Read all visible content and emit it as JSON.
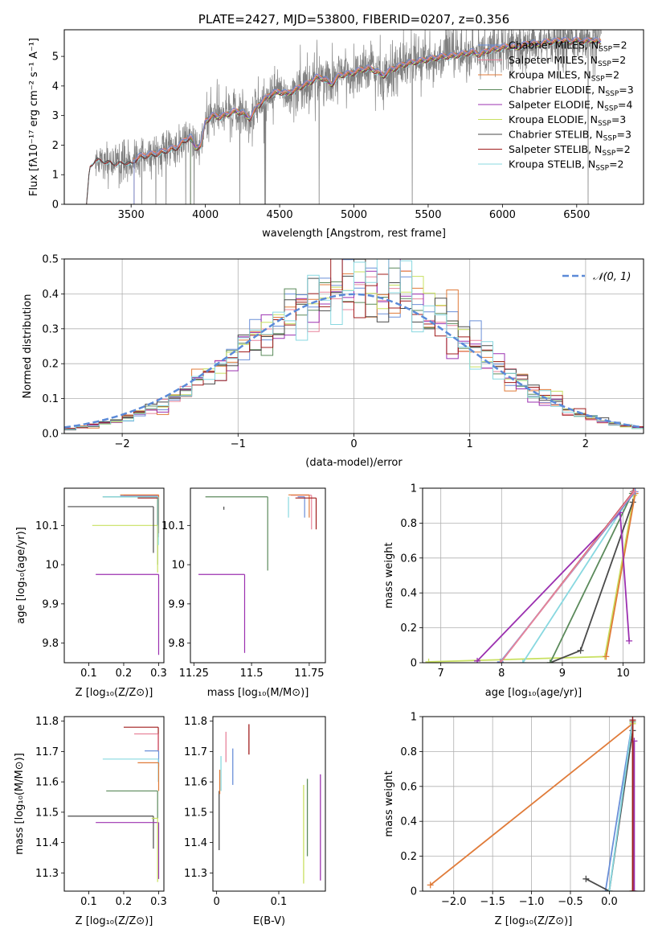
{
  "colors": {
    "chabrier_miles": "#6a8fd8",
    "salpeter_miles": "#e8849b",
    "kroupa_miles": "#e07b39",
    "chabrier_elodie": "#5b8a5b",
    "salpeter_elodie": "#9b30b0",
    "kroupa_elodie": "#c8e060",
    "chabrier_stelib": "#4a4a4a",
    "salpeter_stelib": "#a01c1c",
    "kroupa_stelib": "#88d8e0",
    "data": "#808080",
    "gaussian": "#5b8ad8"
  },
  "chart_data": [
    {
      "id": "spectrum",
      "type": "line",
      "title": "PLATE=2427, MJD=53800, FIBERID=0207, z=0.356",
      "xlabel": "wavelength [Angstrom, rest frame]",
      "ylabel": "Flux [fλ10⁻¹⁷ erg cm⁻² s⁻¹ A⁻¹]",
      "xlim": [
        3050,
        6950
      ],
      "ylim": [
        0,
        5.9
      ],
      "xticks": [
        3500,
        4000,
        4500,
        5000,
        5500,
        6000,
        6500
      ],
      "yticks": [
        0,
        1,
        2,
        3,
        4,
        5
      ],
      "legend_position": "upper right",
      "legend": [
        {
          "label": "Chabrier MILES, N",
          "sub": "SSP",
          "suffix": "=2",
          "color": "chabrier_miles"
        },
        {
          "label": "Salpeter MILES, N",
          "sub": "SSP",
          "suffix": "=2",
          "color": "salpeter_miles"
        },
        {
          "label": "Kroupa MILES, N",
          "sub": "SSP",
          "suffix": "=2",
          "color": "kroupa_miles"
        },
        {
          "label": "Chabrier ELODIE, N",
          "sub": "SSP",
          "suffix": "=3",
          "color": "chabrier_elodie"
        },
        {
          "label": "Salpeter ELODIE, N",
          "sub": "SSP",
          "suffix": "=4",
          "color": "salpeter_elodie"
        },
        {
          "label": "Kroupa ELODIE, N",
          "sub": "SSP",
          "suffix": "=3",
          "color": "kroupa_elodie"
        },
        {
          "label": "Chabrier STELIB, N",
          "sub": "SSP",
          "suffix": "=3",
          "color": "chabrier_stelib"
        },
        {
          "label": "Salpeter STELIB, N",
          "sub": "SSP",
          "suffix": "=2",
          "color": "salpeter_stelib"
        },
        {
          "label": "Kroupa STELIB, N",
          "sub": "SSP",
          "suffix": "=2",
          "color": "kroupa_stelib"
        }
      ],
      "continuum": [
        [
          3200,
          0
        ],
        [
          3220,
          1.25
        ],
        [
          3260,
          1.55
        ],
        [
          3300,
          1.5
        ],
        [
          3350,
          1.45
        ],
        [
          3400,
          1.4
        ],
        [
          3450,
          1.45
        ],
        [
          3500,
          1.4
        ],
        [
          3550,
          1.6
        ],
        [
          3600,
          1.65
        ],
        [
          3650,
          1.7
        ],
        [
          3700,
          1.75
        ],
        [
          3750,
          1.85
        ],
        [
          3800,
          1.9
        ],
        [
          3850,
          2.1
        ],
        [
          3900,
          2.3
        ],
        [
          3935,
          1.9
        ],
        [
          3970,
          2.0
        ],
        [
          4000,
          2.8
        ],
        [
          4050,
          3.0
        ],
        [
          4100,
          2.95
        ],
        [
          4150,
          3.05
        ],
        [
          4200,
          3.15
        ],
        [
          4250,
          3.1
        ],
        [
          4300,
          2.9
        ],
        [
          4350,
          3.3
        ],
        [
          4400,
          3.55
        ],
        [
          4450,
          3.75
        ],
        [
          4500,
          3.8
        ],
        [
          4550,
          3.75
        ],
        [
          4600,
          3.85
        ],
        [
          4650,
          4.0
        ],
        [
          4700,
          4.1
        ],
        [
          4750,
          4.3
        ],
        [
          4800,
          4.25
        ],
        [
          4850,
          4.05
        ],
        [
          4900,
          4.35
        ],
        [
          4950,
          4.4
        ],
        [
          5000,
          4.45
        ],
        [
          5050,
          4.55
        ],
        [
          5100,
          4.6
        ],
        [
          5150,
          4.5
        ],
        [
          5200,
          4.35
        ],
        [
          5250,
          4.55
        ],
        [
          5300,
          4.65
        ],
        [
          5350,
          4.75
        ],
        [
          5400,
          4.8
        ],
        [
          5450,
          4.85
        ],
        [
          5500,
          4.9
        ],
        [
          5550,
          4.95
        ],
        [
          5600,
          5.0
        ],
        [
          5650,
          5.0
        ],
        [
          5700,
          5.05
        ],
        [
          5750,
          5.1
        ],
        [
          5800,
          5.15
        ],
        [
          5850,
          5.05
        ],
        [
          5900,
          5.2
        ],
        [
          5950,
          5.25
        ],
        [
          6000,
          5.3
        ],
        [
          6050,
          5.35
        ],
        [
          6100,
          5.3
        ],
        [
          6150,
          5.4
        ],
        [
          6200,
          5.45
        ],
        [
          6250,
          5.4
        ],
        [
          6300,
          5.5
        ],
        [
          6350,
          5.5
        ],
        [
          6400,
          5.55
        ],
        [
          6450,
          5.5
        ],
        [
          6500,
          5.55
        ],
        [
          6550,
          5.5
        ],
        [
          6600,
          5.55
        ],
        [
          6650,
          5.5
        ]
      ],
      "data_range": [
        3260,
        6665
      ]
    },
    {
      "id": "residuals",
      "type": "bar",
      "xlabel": "(data-model)/error",
      "ylabel": "Normed distribution",
      "xlim": [
        -2.5,
        2.5
      ],
      "ylim": [
        0,
        0.5
      ],
      "xticks": [
        -2,
        -1,
        0,
        1,
        2
      ],
      "xticklabels": [
        "−2",
        "−1",
        "0",
        "1",
        "2"
      ],
      "yticks": [
        0.0,
        0.1,
        0.2,
        0.3,
        0.4,
        0.5
      ],
      "yticklabels": [
        "0.0",
        "0.1",
        "0.2",
        "0.3",
        "0.4",
        "0.5"
      ],
      "bin_width": 0.1,
      "gaussian_label": "𝒩(0, 1)",
      "legend_position": "upper right"
    },
    {
      "id": "age_vs_Z",
      "type": "scatter",
      "xlabel": "Z [log₁₀(Z/Z⊙)]",
      "ylabel": "age  [log₁₀(age/yr)]",
      "xlim": [
        0.03,
        0.315
      ],
      "ylim": [
        9.75,
        10.195
      ],
      "xticks": [
        0.1,
        0.2,
        0.3
      ],
      "yticks": [
        9.8,
        9.9,
        10.0,
        10.1
      ],
      "points": [
        {
          "c": "chabrier_miles",
          "x": 0.299,
          "y": 10.175,
          "xl": 0.19,
          "yl": 10.09
        },
        {
          "c": "salpeter_miles",
          "x": 0.298,
          "y": 10.177,
          "xl": 0.2,
          "yl": 10.1
        },
        {
          "c": "kroupa_miles",
          "x": 0.3,
          "y": 10.178,
          "xl": 0.19,
          "yl": 10.08
        },
        {
          "c": "chabrier_elodie",
          "x": 0.297,
          "y": 10.173,
          "xl": 0.14,
          "yl": 10.0
        },
        {
          "c": "salpeter_elodie",
          "x": 0.3,
          "y": 9.975,
          "xl": 0.12,
          "yl": 9.77
        },
        {
          "c": "kroupa_elodie",
          "x": 0.297,
          "y": 10.1,
          "xl": 0.11,
          "yl": 9.98
        },
        {
          "c": "chabrier_stelib",
          "x": 0.285,
          "y": 10.148,
          "xl": 0.04,
          "yl": 10.03
        },
        {
          "c": "salpeter_stelib",
          "x": 0.299,
          "y": 10.17,
          "xl": 0.24,
          "yl": 10.07
        },
        {
          "c": "kroupa_stelib",
          "x": 0.299,
          "y": 10.173,
          "xl": 0.14,
          "yl": 10.05
        }
      ]
    },
    {
      "id": "age_vs_mass",
      "type": "scatter",
      "xlabel": "mass [log₁₀(M/M⊙)]",
      "ylabel": "",
      "xlim": [
        11.235,
        11.82
      ],
      "ylim": [
        9.75,
        10.195
      ],
      "xticks": [
        11.25,
        11.5,
        11.75
      ],
      "yticks": [
        9.8,
        9.9,
        10.0,
        10.1
      ],
      "points": [
        {
          "c": "chabrier_miles",
          "x": 11.73,
          "y": 10.173,
          "xl": 11.7,
          "yl": 10.12
        },
        {
          "c": "salpeter_miles",
          "x": 11.76,
          "y": 10.177,
          "xl": 11.67,
          "yl": 10.09
        },
        {
          "c": "kroupa_miles",
          "x": 11.75,
          "y": 10.178,
          "xl": 11.66,
          "yl": 10.12
        },
        {
          "c": "chabrier_elodie",
          "x": 11.57,
          "y": 10.173,
          "xl": 11.3,
          "yl": 9.985
        },
        {
          "c": "salpeter_elodie",
          "x": 11.47,
          "y": 9.975,
          "xl": 11.27,
          "yl": 9.775
        },
        {
          "c": "kroupa_elodie",
          "x": 11.27,
          "y": 10.1,
          "xl": 11.27,
          "yl": 10.1
        },
        {
          "c": "chabrier_stelib",
          "x": 11.38,
          "y": 10.148,
          "xl": 11.38,
          "yl": 10.14
        },
        {
          "c": "salpeter_stelib",
          "x": 11.78,
          "y": 10.17,
          "xl": 11.69,
          "yl": 10.09
        },
        {
          "c": "kroupa_stelib",
          "x": 11.66,
          "y": 10.173,
          "xl": 11.66,
          "yl": 10.12
        }
      ]
    },
    {
      "id": "mass_weight_vs_age",
      "type": "line",
      "xlabel": "age  [log₁₀(age/yr)]",
      "ylabel": "mass weight",
      "xlim": [
        6.7,
        10.35
      ],
      "ylim": [
        0,
        1.0
      ],
      "xticks": [
        7,
        8,
        9,
        10
      ],
      "yticks": [
        0.0,
        0.2,
        0.4,
        0.6,
        0.8,
        1.0
      ],
      "series": [
        {
          "c": "kroupa_elodie",
          "points": [
            [
              6.8,
              0.005
            ],
            [
              9.7,
              0.035
            ],
            [
              10.18,
              0.96
            ]
          ]
        },
        {
          "c": "chabrier_stelib",
          "points": [
            [
              8.8,
              0.0
            ],
            [
              9.3,
              0.07
            ],
            [
              10.16,
              0.92
            ]
          ]
        },
        {
          "c": "kroupa_miles",
          "points": [
            [
              9.72,
              0.035
            ],
            [
              10.2,
              0.97
            ]
          ]
        },
        {
          "c": "chabrier_elodie",
          "points": [
            [
              8.8,
              0.0
            ],
            [
              10.15,
              0.97
            ]
          ]
        },
        {
          "c": "kroupa_stelib",
          "points": [
            [
              8.35,
              0.0
            ],
            [
              10.17,
              0.98
            ]
          ]
        },
        {
          "c": "salpeter_elodie",
          "points": [
            [
              7.6,
              0.01
            ],
            [
              9.95,
              0.86
            ],
            [
              10.1,
              0.125
            ]
          ]
        },
        {
          "c": "salpeter_stelib",
          "points": [
            [
              7.98,
              0.0
            ],
            [
              10.17,
              0.98
            ]
          ]
        },
        {
          "c": "chabrier_miles",
          "points": [
            [
              7.98,
              0.005
            ],
            [
              10.2,
              0.98
            ]
          ]
        },
        {
          "c": "salpeter_miles",
          "points": [
            [
              7.98,
              0.0
            ],
            [
              10.18,
              0.98
            ]
          ]
        }
      ]
    },
    {
      "id": "mass_vs_Z",
      "type": "scatter",
      "xlabel": "Z [log₁₀(Z/Z⊙)]",
      "ylabel": "mass [log₁₀(M/M⊙)]",
      "xlim": [
        0.03,
        0.315
      ],
      "ylim": [
        11.24,
        11.815
      ],
      "xticks": [
        0.1,
        0.2,
        0.3
      ],
      "yticks": [
        11.3,
        11.4,
        11.5,
        11.6,
        11.7,
        11.8
      ],
      "points": [
        {
          "c": "salpeter_stelib",
          "x": 0.299,
          "y": 11.78,
          "xl": 0.2,
          "yl": 11.7
        },
        {
          "c": "salpeter_miles",
          "x": 0.298,
          "y": 11.758,
          "xl": 0.23,
          "yl": 11.7
        },
        {
          "c": "chabrier_miles",
          "x": 0.3,
          "y": 11.702,
          "xl": 0.26,
          "yl": 11.65
        },
        {
          "c": "kroupa_stelib",
          "x": 0.299,
          "y": 11.675,
          "xl": 0.14,
          "yl": 11.6
        },
        {
          "c": "kroupa_miles",
          "x": 0.3,
          "y": 11.663,
          "xl": 0.24,
          "yl": 11.57
        },
        {
          "c": "chabrier_elodie",
          "x": 0.297,
          "y": 11.57,
          "xl": 0.15,
          "yl": 11.48
        },
        {
          "c": "chabrier_stelib",
          "x": 0.285,
          "y": 11.487,
          "xl": 0.04,
          "yl": 11.38
        },
        {
          "c": "salpeter_elodie",
          "x": 0.3,
          "y": 11.466,
          "xl": 0.12,
          "yl": 11.28
        },
        {
          "c": "kroupa_elodie",
          "x": 0.297,
          "y": 11.48,
          "xl": 0.28,
          "yl": 11.27
        }
      ]
    },
    {
      "id": "mass_vs_ebv",
      "type": "scatter",
      "xlabel": "E(B-V)",
      "ylabel": "",
      "xlim": [
        -0.006,
        0.175
      ],
      "ylim": [
        11.24,
        11.815
      ],
      "xticks": [
        0.0,
        0.1
      ],
      "yticks": [
        11.3,
        11.4,
        11.5,
        11.6,
        11.7,
        11.8
      ],
      "points": [
        {
          "c": "chabrier_stelib",
          "x": 0.004,
          "yl": 11.375,
          "yh": 11.57
        },
        {
          "c": "kroupa_stelib",
          "x": 0.007,
          "yl": 11.57,
          "yh": 11.685
        },
        {
          "c": "kroupa_miles",
          "x": 0.005,
          "yl": 11.56,
          "yh": 11.64
        },
        {
          "c": "salpeter_miles",
          "x": 0.015,
          "yl": 11.665,
          "yh": 11.765
        },
        {
          "c": "chabrier_miles",
          "x": 0.026,
          "yl": 11.59,
          "yh": 11.71
        },
        {
          "c": "salpeter_stelib",
          "x": 0.052,
          "yl": 11.69,
          "yh": 11.79
        },
        {
          "c": "kroupa_elodie",
          "x": 0.14,
          "yl": 11.265,
          "yh": 11.59
        },
        {
          "c": "chabrier_elodie",
          "x": 0.146,
          "yl": 11.355,
          "yh": 11.61
        },
        {
          "c": "salpeter_elodie",
          "x": 0.167,
          "yl": 11.275,
          "yh": 11.625
        }
      ]
    },
    {
      "id": "mass_weight_vs_Z",
      "type": "line",
      "xlabel": "Z [log₁₀(Z/Z⊙)]",
      "ylabel": "mass weight",
      "xlim": [
        -2.4,
        0.45
      ],
      "ylim": [
        0,
        1.0
      ],
      "xticks": [
        -2.0,
        -1.5,
        -1.0,
        -0.5,
        0.0
      ],
      "xticklabels": [
        "−2.0",
        "−1.5",
        "−1.0",
        "−0.5",
        "0.0"
      ],
      "yticks": [
        0.0,
        0.2,
        0.4,
        0.6,
        0.8,
        1.0
      ],
      "series": [
        {
          "c": "kroupa_miles",
          "points": [
            [
              -2.3,
              0.035
            ],
            [
              0.3,
              0.96
            ]
          ]
        },
        {
          "c": "chabrier_miles",
          "points": [
            [
              -0.05,
              0.0
            ],
            [
              0.3,
              0.98
            ]
          ]
        },
        {
          "c": "chabrier_stelib",
          "points": [
            [
              -0.3,
              0.07
            ],
            [
              0.0,
              0.0
            ],
            [
              0.3,
              0.92
            ]
          ]
        },
        {
          "c": "kroupa_stelib",
          "points": [
            [
              0.0,
              0.0
            ],
            [
              0.3,
              0.98
            ]
          ]
        },
        {
          "c": "chabrier_elodie",
          "points": [
            [
              0.3,
              0.0
            ],
            [
              0.3,
              0.97
            ]
          ]
        },
        {
          "c": "salpeter_elodie",
          "points": [
            [
              0.32,
              0.0
            ],
            [
              0.32,
              0.86
            ]
          ]
        },
        {
          "c": "kroupa_elodie",
          "points": [
            [
              0.3,
              0.0
            ],
            [
              0.3,
              0.96
            ]
          ]
        },
        {
          "c": "salpeter_stelib",
          "points": [
            [
              0.3,
              0.0
            ],
            [
              0.3,
              0.98
            ]
          ]
        }
      ]
    }
  ]
}
